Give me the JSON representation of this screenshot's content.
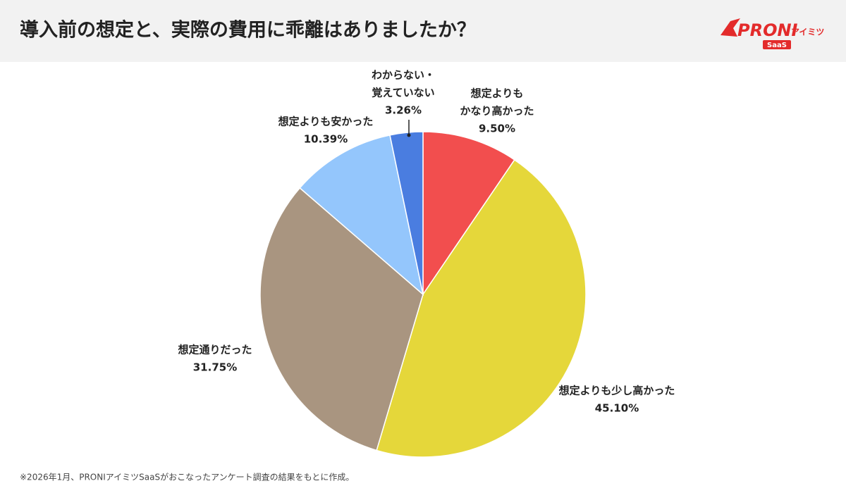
{
  "header": {
    "title": "導入前の想定と、実際の費用に乖離はありましたか？"
  },
  "logo": {
    "brand": "PRONI",
    "sub": "アイミツ",
    "tag": "SaaS"
  },
  "chart_data": {
    "type": "pie",
    "categories": [
      [
        "想定よりも",
        "かなり高かった"
      ],
      [
        "想定よりも少し高かった"
      ],
      [
        "想定通りだった"
      ],
      [
        "想定よりも安かった"
      ],
      [
        "わからない・",
        "覚えていない"
      ]
    ],
    "values": [
      9.5,
      45.1,
      31.75,
      10.39,
      3.26
    ],
    "value_labels": [
      "9.50%",
      "45.10%",
      "31.75%",
      "10.39%",
      "3.26%"
    ],
    "colors": [
      "#f24e4e",
      "#e5d73a",
      "#a99580",
      "#94c6fc",
      "#4a7de0"
    ]
  },
  "footnote": "※2026年1月、PRONIアイミツSaaSがおこなったアンケート調査の結果をもとに作成。"
}
